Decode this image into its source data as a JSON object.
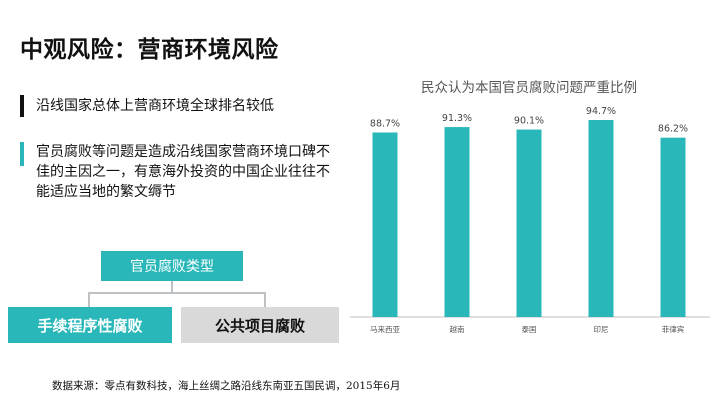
{
  "page": {
    "title": "中观风险：营商环境风险",
    "bullets": [
      "沿线国家总体上营商环境全球排名较低",
      "官员腐败等问题是造成沿线国家营商环境口碑不佳的主因之一，有意海外投资的中国企业往往不能适应当地的繁文缛节"
    ],
    "diagram": {
      "root": "官员腐败类型",
      "children": [
        "手续程序性腐败",
        "公共项目腐败"
      ]
    },
    "source": "数据来源：零点有数科技，海上丝绸之路沿线东南亚五国民调，2015年6月"
  },
  "colors": {
    "accent": "#2ab7b9",
    "gray": "#d9d9d9",
    "axis": "#bfbfbf"
  },
  "chart_data": {
    "type": "bar",
    "title": "民众认为本国官员腐败问题严重比例",
    "categories": [
      "马来西亚",
      "越南",
      "泰国",
      "印尼",
      "菲律宾"
    ],
    "values": [
      88.7,
      91.3,
      90.1,
      94.7,
      86.2
    ],
    "value_labels": [
      "88.7%",
      "91.3%",
      "90.1%",
      "94.7%",
      "86.2%"
    ],
    "ylim": [
      0,
      100
    ],
    "grid": false,
    "legend": "none"
  }
}
